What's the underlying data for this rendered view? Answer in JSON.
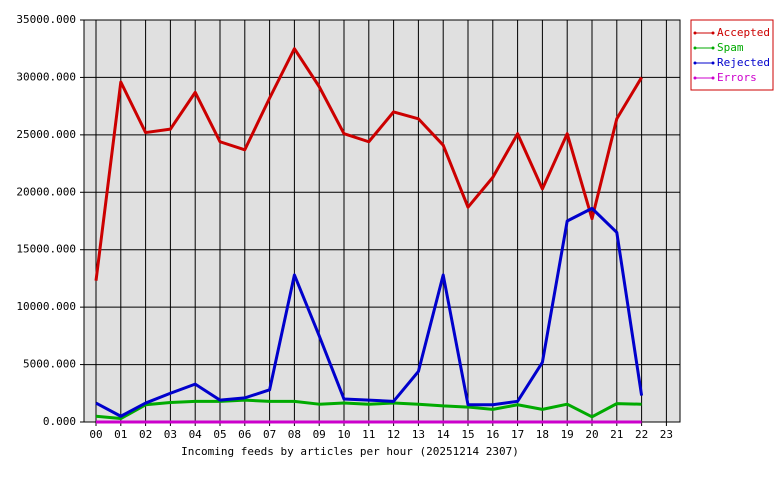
{
  "chart_data": {
    "type": "line",
    "x_label": "Incoming feeds by articles per hour (20251214 2307)",
    "categories": [
      "00",
      "01",
      "02",
      "03",
      "04",
      "05",
      "06",
      "07",
      "08",
      "09",
      "10",
      "11",
      "12",
      "13",
      "14",
      "15",
      "16",
      "17",
      "18",
      "19",
      "20",
      "21",
      "22",
      "23"
    ],
    "series": [
      {
        "name": "Accepted",
        "color": "#cc0000",
        "values": [
          12300,
          29600,
          25200,
          25500,
          28700,
          24400,
          23700,
          28200,
          32500,
          29200,
          25100,
          24400,
          27000,
          26400,
          24100,
          18700,
          21300,
          25100,
          20300,
          25100,
          17700,
          26400,
          30000,
          null
        ]
      },
      {
        "name": "Spam",
        "color": "#00aa00",
        "values": [
          500,
          300,
          1500,
          1700,
          1800,
          1800,
          1900,
          1800,
          1800,
          1550,
          1650,
          1550,
          1650,
          1550,
          1400,
          1300,
          1100,
          1500,
          1100,
          1550,
          450,
          1600,
          1550,
          null
        ]
      },
      {
        "name": "Rejected",
        "color": "#0000cc",
        "values": [
          1650,
          500,
          1650,
          2500,
          3300,
          1900,
          2100,
          2800,
          12800,
          7500,
          2000,
          1900,
          1800,
          4400,
          12800,
          1500,
          1500,
          1800,
          5200,
          17500,
          18600,
          16500,
          2300,
          null
        ]
      },
      {
        "name": "Errors",
        "color": "#cc00cc",
        "values": [
          0,
          0,
          0,
          0,
          0,
          0,
          0,
          0,
          0,
          0,
          0,
          0,
          0,
          0,
          0,
          0,
          0,
          0,
          0,
          0,
          0,
          0,
          0,
          null
        ]
      }
    ],
    "ylim": [
      0,
      35000
    ],
    "yticks": [
      {
        "value": 0,
        "label": "0.000"
      },
      {
        "value": 5000,
        "label": "5000.000"
      },
      {
        "value": 10000,
        "label": "10000.000"
      },
      {
        "value": 15000,
        "label": "15000.000"
      },
      {
        "value": 20000,
        "label": "20000.000"
      },
      {
        "value": 25000,
        "label": "25000.000"
      },
      {
        "value": 30000,
        "label": "30000.000"
      },
      {
        "value": 35000,
        "label": "35000.000"
      }
    ],
    "grid": true,
    "legend": "top-right",
    "plot_background": "#e0e0e0"
  }
}
